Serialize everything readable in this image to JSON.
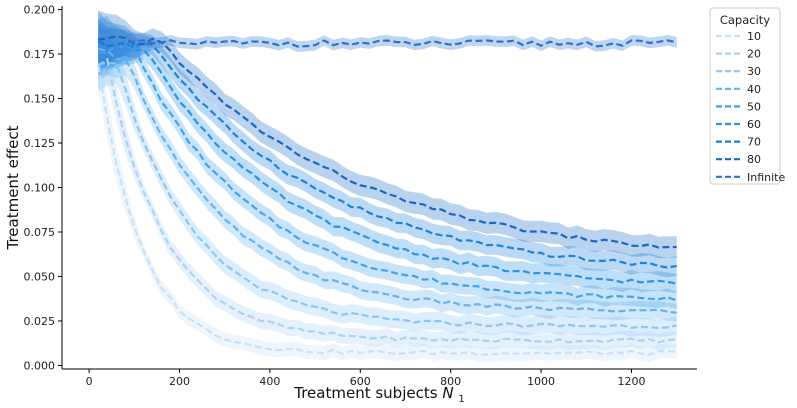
{
  "chart_data": {
    "type": "line",
    "title": "",
    "xlabel": "Treatment subjects",
    "xlabel_symbol": "N",
    "xlabel_subscript": "1",
    "ylabel": "Treatment effect",
    "xlim": [
      -60,
      1345
    ],
    "ylim": [
      -0.002,
      0.202
    ],
    "xticks": [
      0,
      200,
      400,
      600,
      800,
      1000,
      1200
    ],
    "xtick_labels": [
      "0",
      "200",
      "400",
      "600",
      "800",
      "1000",
      "1200"
    ],
    "yticks": [
      0.0,
      0.025,
      0.05,
      0.075,
      0.1,
      0.125,
      0.15,
      0.175,
      0.2
    ],
    "ytick_labels": [
      "0.000",
      "0.025",
      "0.050",
      "0.075",
      "0.100",
      "0.125",
      "0.150",
      "0.175",
      "0.200"
    ],
    "grid": false,
    "legend": {
      "title": "Capacity",
      "position": "upper right, outside"
    },
    "line_style": "dashed",
    "x_start": 20,
    "x_end": 1300,
    "x_step": 20,
    "series": [
      {
        "name": "10",
        "color": "#c6e0f7",
        "plateau": 0.17,
        "final": 0.007,
        "knee": 20,
        "tau": 95,
        "band": 0.004
      },
      {
        "name": "20",
        "color": "#a9d2f5",
        "plateau": 0.17,
        "final": 0.014,
        "knee": 40,
        "tau": 130,
        "band": 0.0045
      },
      {
        "name": "30",
        "color": "#8cc5f4",
        "plateau": 0.172,
        "final": 0.022,
        "knee": 60,
        "tau": 165,
        "band": 0.005
      },
      {
        "name": "40",
        "color": "#64b2f0",
        "plateau": 0.175,
        "final": 0.03,
        "knee": 80,
        "tau": 215,
        "band": 0.005
      },
      {
        "name": "50",
        "color": "#41a2ee",
        "plateau": 0.178,
        "final": 0.036,
        "knee": 100,
        "tau": 265,
        "band": 0.005
      },
      {
        "name": "60",
        "color": "#2993e8",
        "plateau": 0.18,
        "final": 0.043,
        "knee": 120,
        "tau": 315,
        "band": 0.0055
      },
      {
        "name": "70",
        "color": "#1d82dc",
        "plateau": 0.181,
        "final": 0.05,
        "knee": 140,
        "tau": 370,
        "band": 0.0055
      },
      {
        "name": "80",
        "color": "#1769c6",
        "plateau": 0.182,
        "final": 0.057,
        "knee": 160,
        "tau": 430,
        "band": 0.006
      },
      {
        "name": "Infinite",
        "color": "#2f73cc",
        "plateau": 0.181,
        "final": 0.181,
        "knee": 0,
        "tau": 1,
        "band": 0.003
      }
    ]
  }
}
